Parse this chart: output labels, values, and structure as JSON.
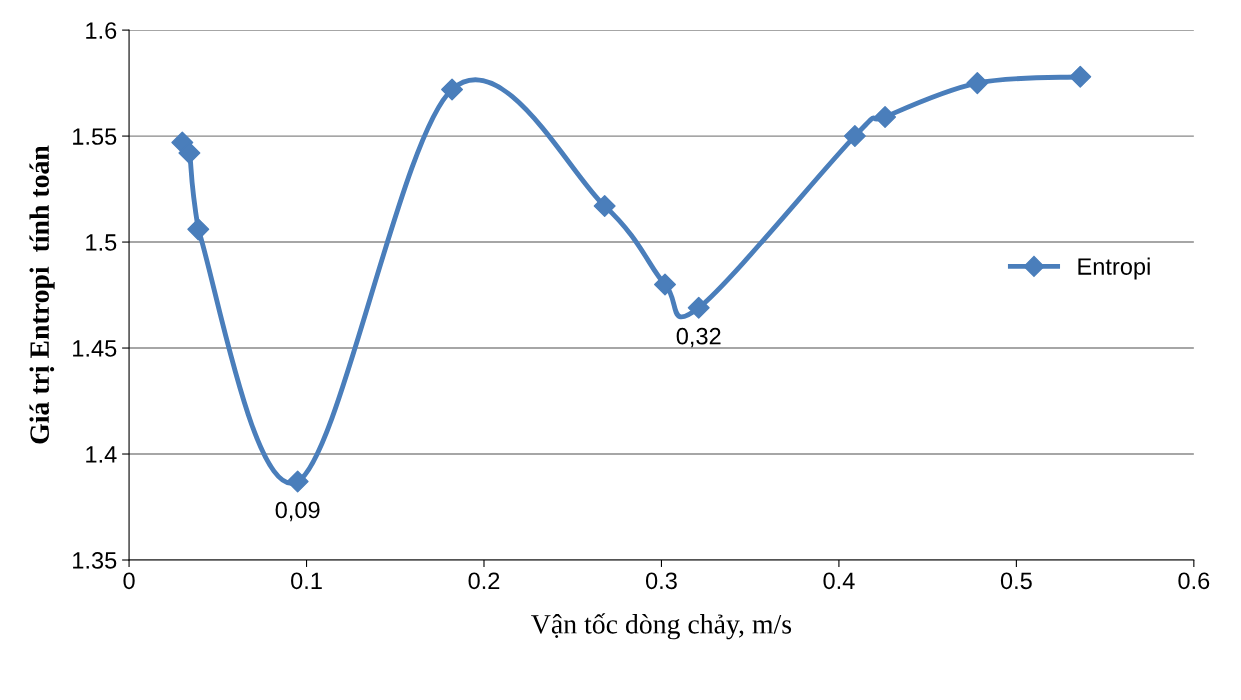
{
  "chart_data": {
    "type": "line",
    "xlabel": "Vận tốc dòng chảy, m/s",
    "ylabel": "Giá trị Entropi  tính toán",
    "series": [
      {
        "name": "Entropi",
        "color": "#4a7ebb",
        "x": [
          0.03,
          0.034,
          0.039,
          0.095,
          0.182,
          0.268,
          0.302,
          0.321,
          0.409,
          0.426,
          0.478,
          0.536
        ],
        "values": [
          1.547,
          1.542,
          1.506,
          1.387,
          1.572,
          1.517,
          1.48,
          1.469,
          1.55,
          1.559,
          1.575,
          1.578
        ]
      }
    ],
    "annotations": [
      {
        "text": "0,09",
        "x": 0.095,
        "y": 1.387
      },
      {
        "text": "0,32",
        "x": 0.321,
        "y": 1.469
      }
    ],
    "xlim": [
      0,
      0.6
    ],
    "ylim": [
      1.35,
      1.6
    ],
    "xticks": [
      0,
      0.1,
      0.2,
      0.3,
      0.4,
      0.5,
      0.6
    ],
    "yticks": [
      1.35,
      1.4,
      1.45,
      1.5,
      1.55,
      1.6
    ],
    "grid": "y",
    "legend": "right",
    "marker": "diamond",
    "line_style": "solid"
  }
}
